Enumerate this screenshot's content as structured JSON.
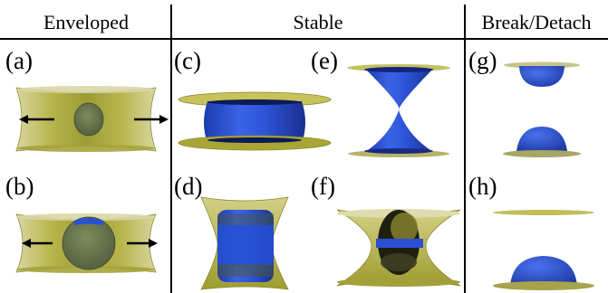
{
  "headers": {
    "enveloped": "Enveloped",
    "stable": "Stable",
    "break_detach": "Break/Detach"
  },
  "panel_labels": {
    "a": "(a)",
    "b": "(b)",
    "c": "(c)",
    "d": "(d)",
    "e": "(e)",
    "f": "(f)",
    "g": "(g)",
    "h": "(h)"
  },
  "colors": {
    "meniscus_yellow": "#b5b246",
    "droplet_blue": "#2a4fd2",
    "divider": "#000000"
  }
}
